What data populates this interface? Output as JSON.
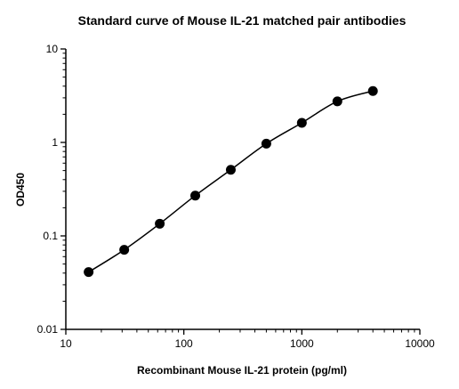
{
  "chart_data": {
    "type": "scatter",
    "title": "Standard curve of Mouse IL-21 matched pair antibodies",
    "xlabel": "Recombinant Mouse IL-21 protein (pg/ml)",
    "ylabel": "OD450",
    "x_scale": "log",
    "y_scale": "log",
    "xlim": [
      10,
      10000
    ],
    "ylim": [
      0.01,
      10
    ],
    "x_ticks": [
      "10",
      "100",
      "1000",
      "10000"
    ],
    "y_ticks": [
      "0.01",
      "0.1",
      "1",
      "10"
    ],
    "grid": false,
    "legend": "none",
    "fit_line": true,
    "marker_color": "#000000",
    "series": [
      {
        "x": [
          15.6,
          31.25,
          62.5,
          125,
          250,
          500,
          1000,
          2000,
          4000
        ],
        "y": [
          0.041,
          0.071,
          0.135,
          0.27,
          0.51,
          0.97,
          1.62,
          2.75,
          3.55
        ]
      }
    ]
  }
}
